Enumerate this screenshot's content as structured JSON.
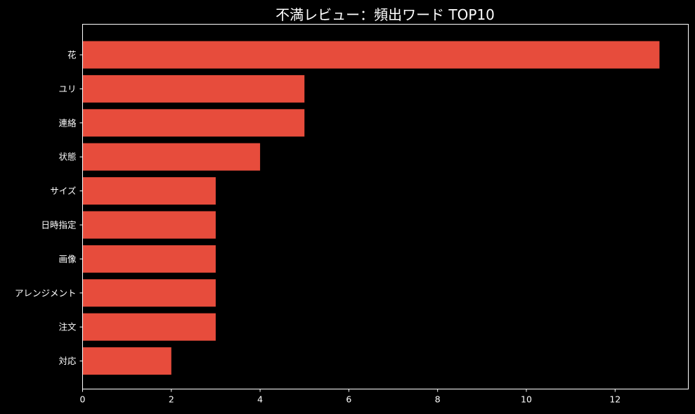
{
  "chart_data": {
    "type": "bar",
    "orientation": "horizontal",
    "title": "不満レビュー：頻出ワード TOP10",
    "xlabel": "",
    "ylabel": "",
    "categories": [
      "花",
      "ユリ",
      "連絡",
      "状態",
      "サイズ",
      "日時指定",
      "画像",
      "アレンジメント",
      "注文",
      "対応"
    ],
    "values": [
      13,
      5,
      5,
      4,
      3,
      3,
      3,
      3,
      3,
      2
    ],
    "xlim": [
      0,
      13.65
    ],
    "xticks": [
      0,
      2,
      4,
      6,
      8,
      10,
      12
    ],
    "grid": false,
    "legend": "none",
    "colors": {
      "bar": "#e74c3c",
      "background": "#000000",
      "foreground": "#ffffff"
    }
  }
}
